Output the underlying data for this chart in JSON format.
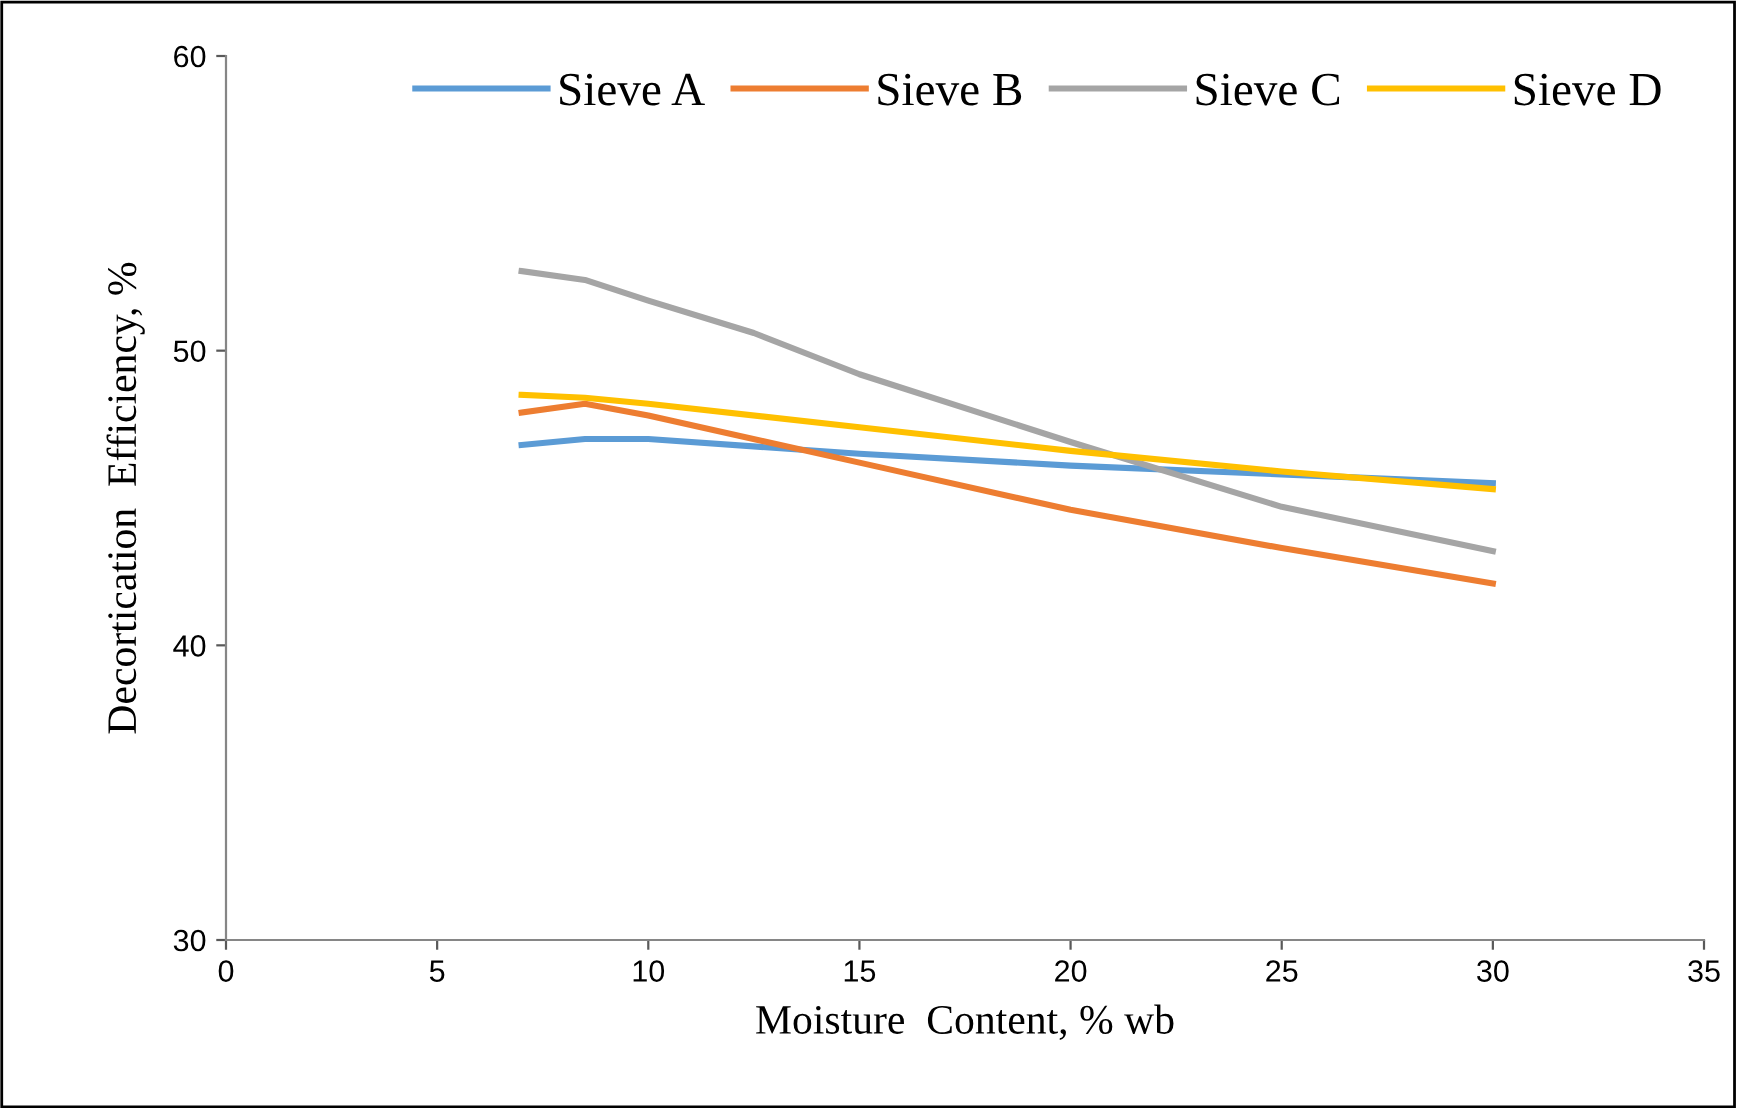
{
  "chart_data": {
    "type": "line",
    "xlabel": "Moisture  Content, % wb",
    "ylabel": "Decortication  Efficiency, %",
    "xlim": [
      0,
      35
    ],
    "xticks": [
      0,
      5,
      10,
      15,
      20,
      25,
      30,
      35
    ],
    "ylim": [
      30,
      60
    ],
    "yticks": [
      30,
      40,
      50,
      60
    ],
    "grid": false,
    "legend": "top",
    "marker": "none",
    "line_style": "solid",
    "series": [
      {
        "name": "Sieve A",
        "color": "#5b9bd5",
        "x": [
          7,
          8.5,
          10,
          15,
          20,
          25,
          30
        ],
        "values": [
          46.8,
          47.0,
          47.0,
          46.5,
          46.1,
          45.8,
          45.5
        ]
      },
      {
        "name": "Sieve B",
        "color": "#ed7d31",
        "x": [
          7,
          8.5,
          10,
          15,
          20,
          25,
          30
        ],
        "values": [
          47.9,
          48.2,
          47.8,
          46.2,
          44.6,
          43.3,
          42.1
        ]
      },
      {
        "name": "Sieve C",
        "color": "#a5a5a5",
        "x": [
          7,
          8.5,
          10,
          12.5,
          15,
          20,
          25,
          30
        ],
        "values": [
          52.7,
          52.4,
          51.7,
          50.6,
          49.2,
          46.9,
          44.7,
          43.2
        ]
      },
      {
        "name": "Sieve D",
        "color": "#ffc000",
        "x": [
          7,
          8.5,
          10,
          15,
          20,
          25,
          30
        ],
        "values": [
          48.5,
          48.4,
          48.2,
          47.4,
          46.6,
          45.9,
          45.3
        ]
      }
    ]
  }
}
